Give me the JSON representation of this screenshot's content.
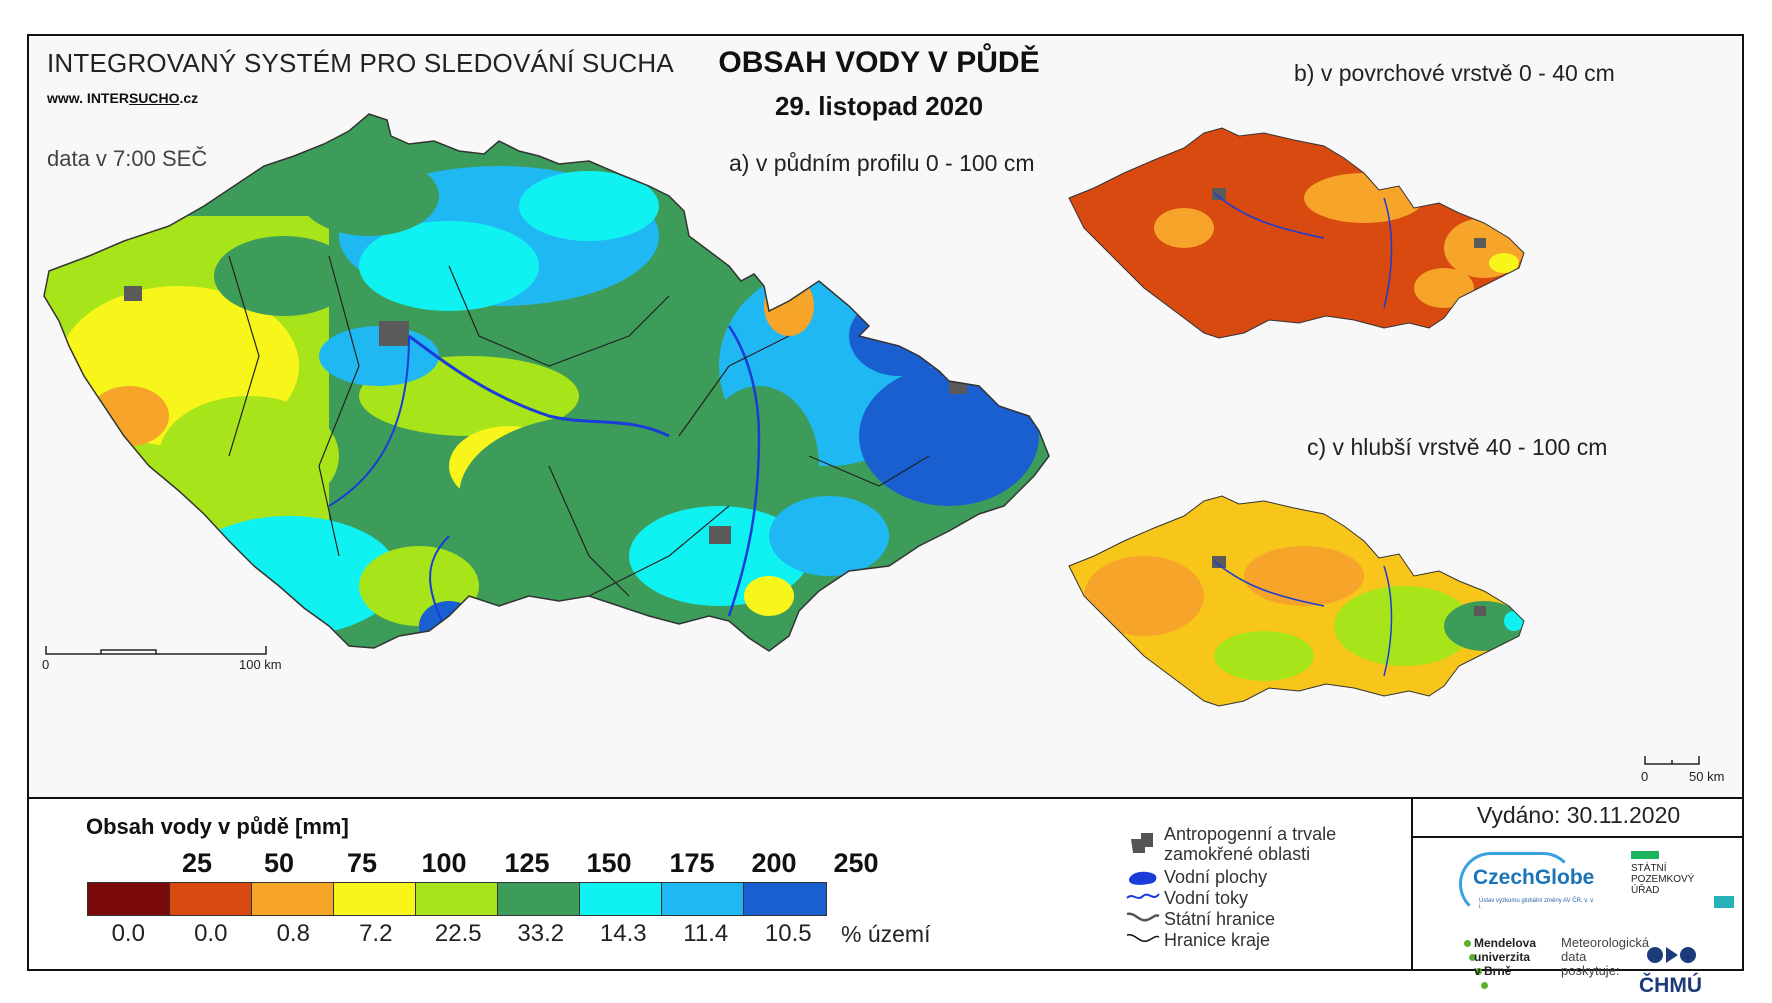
{
  "header": {
    "system_name": "INTEGROVANÝ SYSTÉM PRO SLEDOVÁNÍ SUCHA",
    "website_prefix": "www. INTER",
    "website_brand": "SUCHO",
    "website_suffix": ".cz",
    "data_time": "data v 7:00 SEČ",
    "main_title": "OBSAH VODY V PŮDĚ",
    "date": "29. listopad 2020"
  },
  "panels": {
    "a": {
      "title": "a) v půdním profilu 0 - 100 cm",
      "scale_start": "0",
      "scale_end": "100 km"
    },
    "b": {
      "title": "b) v povrchové vrstvě 0 - 40 cm"
    },
    "c": {
      "title": "c) v hlubší vrstvě 40 - 100 cm",
      "scale_start": "0",
      "scale_end": "50 km"
    }
  },
  "legend": {
    "title": "Obsah vody v půdě  [mm]",
    "bins": [
      "25",
      "50",
      "75",
      "100",
      "125",
      "150",
      "175",
      "200",
      "250"
    ],
    "colors": [
      "#7a0a0a",
      "#d84a10",
      "#f7a42a",
      "#f8f51a",
      "#a8e41a",
      "#3d9c5a",
      "#10f2f2",
      "#20b8f2",
      "#1a5fd0"
    ],
    "percent_area": [
      "0.0",
      "0.0",
      "0.8",
      "7.2",
      "22.5",
      "33.2",
      "14.3",
      "11.4",
      "10.5"
    ],
    "percent_unit": "% území"
  },
  "symbols": {
    "anthropogenic_line1": "Antropogenní a trvale",
    "anthropogenic_line2": "zamokřené oblasti",
    "water_bodies": "Vodní plochy",
    "streams": "Vodní toky",
    "state_border": "Státní hranice",
    "region_border": "Hranice kraje"
  },
  "issued": "Vydáno: 30.11.2020",
  "logos": {
    "czechglobe": "CzechGlobe",
    "czechglobe_sub": "Ústav výzkumu globální změny AV ČR, v. v. i.",
    "spu_line1": "STÁTNÍ",
    "spu_line2": "POZEMKOVÝ",
    "spu_line3": "ÚŘAD",
    "mendel_line1": "Mendelova",
    "mendel_line2": "univerzita",
    "mendel_line3": "v Brně",
    "meteo_line1": "Meteorologická",
    "meteo_line2": "data",
    "meteo_line3": "poskytuje:",
    "chmu": "ČHMÚ"
  }
}
